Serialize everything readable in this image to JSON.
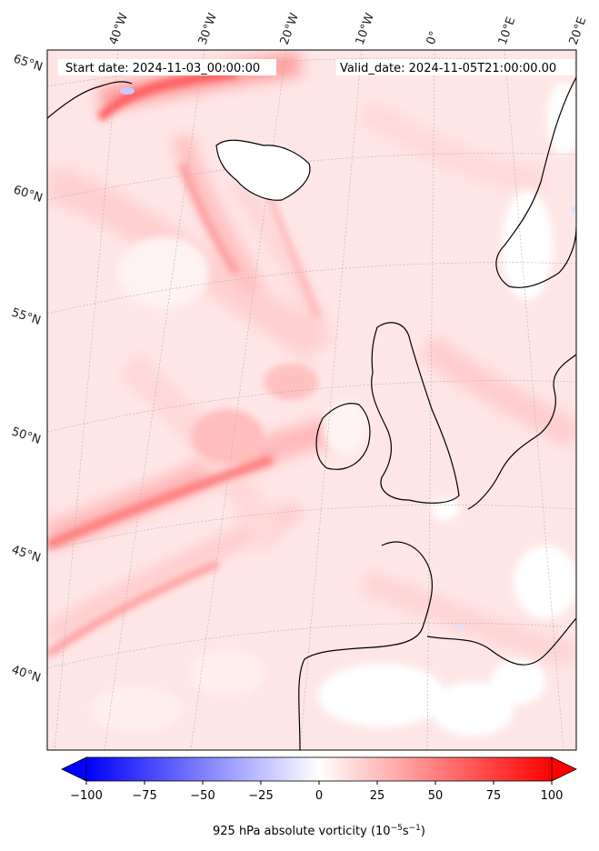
{
  "header": {
    "start_date": "Start date: 2024-11-03_00:00:00",
    "valid_date": "Valid_date: 2024-11-05T21:00:00.00"
  },
  "map": {
    "lon_labels": [
      "40°W",
      "30°W",
      "20°W",
      "10°W",
      "0°",
      "10°E",
      "20°E"
    ],
    "lat_labels": [
      "65°N",
      "60°N",
      "55°N",
      "50°N",
      "45°N",
      "40°N"
    ]
  },
  "colorbar": {
    "ticks": [
      "−100",
      "−75",
      "−50",
      "−25",
      "0",
      "25",
      "50",
      "75",
      "100"
    ],
    "range": [
      -100,
      100
    ],
    "low_color": "#0000ff",
    "mid_color": "#ffffff",
    "high_color": "#ff0000",
    "label_main": "925 hPa absolute vorticity (10",
    "label_exp1": "−5",
    "label_mid": "s",
    "label_exp2": "−1",
    "label_end": ")"
  }
}
